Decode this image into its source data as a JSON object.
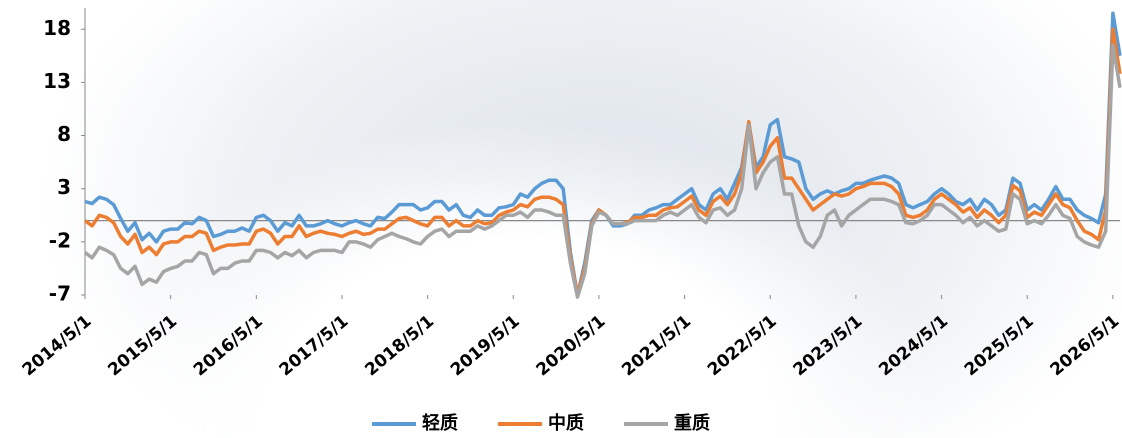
{
  "chart_data": {
    "type": "line",
    "x": [
      "2014/5/1",
      "2014/6/1",
      "2014/7/1",
      "2014/8/1",
      "2014/9/1",
      "2014/10/1",
      "2014/11/1",
      "2014/12/1",
      "2015/1/1",
      "2015/2/1",
      "2015/3/1",
      "2015/4/1",
      "2015/5/1",
      "2015/6/1",
      "2015/7/1",
      "2015/8/1",
      "2015/9/1",
      "2015/10/1",
      "2015/11/1",
      "2015/12/1",
      "2016/1/1",
      "2016/2/1",
      "2016/3/1",
      "2016/4/1",
      "2016/5/1",
      "2016/6/1",
      "2016/7/1",
      "2016/8/1",
      "2016/9/1",
      "2016/10/1",
      "2016/11/1",
      "2016/12/1",
      "2017/1/1",
      "2017/2/1",
      "2017/3/1",
      "2017/4/1",
      "2017/5/1",
      "2017/6/1",
      "2017/7/1",
      "2017/8/1",
      "2017/9/1",
      "2017/10/1",
      "2017/11/1",
      "2017/12/1",
      "2018/1/1",
      "2018/2/1",
      "2018/3/1",
      "2018/4/1",
      "2018/5/1",
      "2018/6/1",
      "2018/7/1",
      "2018/8/1",
      "2018/9/1",
      "2018/10/1",
      "2018/11/1",
      "2018/12/1",
      "2019/1/1",
      "2019/2/1",
      "2019/3/1",
      "2019/4/1",
      "2019/5/1",
      "2019/6/1",
      "2019/7/1",
      "2019/8/1",
      "2019/9/1",
      "2019/10/1",
      "2019/11/1",
      "2019/12/1",
      "2020/1/1",
      "2020/2/1",
      "2020/3/1",
      "2020/4/1",
      "2020/5/1",
      "2020/6/1",
      "2020/7/1",
      "2020/8/1",
      "2020/9/1",
      "2020/10/1",
      "2020/11/1",
      "2020/12/1",
      "2021/1/1",
      "2021/2/1",
      "2021/3/1",
      "2021/4/1",
      "2021/5/1",
      "2021/6/1",
      "2021/7/1",
      "2021/8/1",
      "2021/9/1",
      "2021/10/1",
      "2021/11/1",
      "2021/12/1",
      "2022/1/1",
      "2022/2/1",
      "2022/3/1",
      "2022/4/1",
      "2022/5/1",
      "2022/6/1",
      "2022/7/1",
      "2022/8/1",
      "2022/9/1",
      "2022/10/1",
      "2022/11/1",
      "2022/12/1",
      "2023/1/1",
      "2023/2/1",
      "2023/3/1",
      "2023/4/1",
      "2023/5/1",
      "2023/6/1",
      "2023/7/1",
      "2023/8/1",
      "2023/9/1",
      "2023/10/1",
      "2023/11/1",
      "2023/12/1",
      "2024/1/1",
      "2024/2/1",
      "2024/3/1",
      "2024/4/1",
      "2024/5/1",
      "2024/6/1",
      "2024/7/1",
      "2024/8/1",
      "2024/9/1",
      "2024/10/1",
      "2024/11/1",
      "2024/12/1",
      "2025/1/1",
      "2025/2/1",
      "2025/3/1",
      "2025/4/1",
      "2025/5/1",
      "2025/6/1",
      "2025/7/1",
      "2025/8/1",
      "2025/9/1",
      "2025/10/1",
      "2025/11/1",
      "2025/12/1",
      "2026/1/1",
      "2026/2/1",
      "2026/3/1",
      "2026/4/1",
      "2026/5/1",
      "2026/6/1"
    ],
    "series": [
      {
        "name": "轻质",
        "color": "#5b9bd5",
        "values": [
          1.8,
          1.6,
          2.2,
          2.0,
          1.5,
          0.2,
          -1.0,
          -0.2,
          -1.8,
          -1.2,
          -2.0,
          -1.0,
          -0.8,
          -0.8,
          -0.2,
          -0.3,
          0.3,
          0.0,
          -1.5,
          -1.3,
          -1.0,
          -1.0,
          -0.7,
          -1.0,
          0.3,
          0.5,
          0.0,
          -1.0,
          -0.2,
          -0.5,
          0.5,
          -0.5,
          -0.5,
          -0.3,
          0.0,
          -0.3,
          -0.5,
          -0.2,
          0.0,
          -0.3,
          -0.5,
          0.3,
          0.2,
          0.8,
          1.5,
          1.5,
          1.5,
          1.0,
          1.2,
          1.8,
          1.8,
          1.0,
          1.5,
          0.5,
          0.3,
          1.0,
          0.5,
          0.5,
          1.2,
          1.3,
          1.5,
          2.5,
          2.2,
          3.0,
          3.5,
          3.8,
          3.8,
          3.0,
          -3.0,
          -7.0,
          -4.0,
          0.0,
          1.0,
          0.5,
          -0.5,
          -0.5,
          -0.3,
          0.5,
          0.5,
          1.0,
          1.2,
          1.5,
          1.5,
          2.0,
          2.5,
          3.0,
          1.5,
          1.0,
          2.5,
          3.0,
          2.0,
          3.5,
          5.0,
          9.2,
          5.0,
          6.0,
          9.0,
          9.5,
          6.0,
          5.8,
          5.5,
          3.0,
          2.0,
          2.5,
          2.8,
          2.5,
          2.8,
          3.0,
          3.5,
          3.5,
          3.8,
          4.0,
          4.2,
          4.0,
          3.5,
          1.5,
          1.2,
          1.5,
          1.8,
          2.5,
          3.0,
          2.5,
          1.8,
          1.5,
          2.0,
          1.0,
          2.0,
          1.5,
          0.5,
          1.0,
          4.0,
          3.5,
          1.0,
          1.5,
          1.0,
          2.0,
          3.2,
          2.0,
          2.0,
          1.0,
          0.5,
          0.2,
          -0.2,
          2.5,
          19.5,
          15.5
        ]
      },
      {
        "name": "中质",
        "color": "#ed7d31",
        "values": [
          0.0,
          -0.5,
          0.5,
          0.3,
          -0.2,
          -1.5,
          -2.2,
          -1.3,
          -3.0,
          -2.5,
          -3.2,
          -2.2,
          -2.0,
          -2.0,
          -1.5,
          -1.5,
          -1.0,
          -1.2,
          -2.8,
          -2.5,
          -2.3,
          -2.3,
          -2.2,
          -2.2,
          -1.0,
          -0.8,
          -1.2,
          -2.2,
          -1.5,
          -1.5,
          -0.5,
          -1.5,
          -1.2,
          -1.0,
          -1.2,
          -1.3,
          -1.5,
          -1.2,
          -1.0,
          -1.3,
          -1.2,
          -0.8,
          -0.8,
          -0.3,
          0.2,
          0.3,
          0.0,
          -0.3,
          -0.5,
          0.3,
          0.3,
          -0.5,
          0.0,
          -0.5,
          -0.5,
          0.0,
          -0.3,
          -0.2,
          0.5,
          0.8,
          1.0,
          1.5,
          1.3,
          2.0,
          2.2,
          2.2,
          2.0,
          1.5,
          -3.5,
          -7.0,
          -4.5,
          -0.3,
          1.0,
          0.5,
          -0.3,
          -0.3,
          -0.2,
          0.3,
          0.3,
          0.5,
          0.5,
          1.0,
          1.2,
          1.3,
          1.8,
          2.3,
          1.0,
          0.5,
          1.8,
          2.3,
          1.5,
          2.5,
          4.5,
          9.3,
          4.5,
          5.5,
          7.0,
          7.8,
          4.0,
          4.0,
          3.0,
          2.0,
          1.0,
          1.5,
          2.0,
          2.5,
          2.3,
          2.5,
          3.0,
          3.2,
          3.5,
          3.5,
          3.5,
          3.2,
          2.5,
          0.5,
          0.3,
          0.5,
          1.0,
          2.0,
          2.5,
          2.0,
          1.5,
          0.8,
          1.2,
          0.3,
          1.0,
          0.5,
          -0.2,
          0.5,
          3.3,
          2.8,
          0.3,
          0.8,
          0.5,
          1.5,
          2.5,
          1.5,
          1.2,
          0.0,
          -1.0,
          -1.3,
          -1.8,
          1.0,
          18.0,
          13.8
        ]
      },
      {
        "name": "重质",
        "color": "#a5a5a5",
        "values": [
          -3.0,
          -3.5,
          -2.5,
          -2.8,
          -3.2,
          -4.5,
          -5.0,
          -4.3,
          -6.0,
          -5.5,
          -5.8,
          -4.8,
          -4.5,
          -4.3,
          -3.8,
          -3.8,
          -3.0,
          -3.2,
          -5.0,
          -4.5,
          -4.5,
          -4.0,
          -3.8,
          -3.8,
          -2.8,
          -2.8,
          -3.0,
          -3.5,
          -3.0,
          -3.3,
          -2.8,
          -3.5,
          -3.0,
          -2.8,
          -2.8,
          -2.8,
          -3.0,
          -2.0,
          -2.0,
          -2.2,
          -2.5,
          -1.8,
          -1.5,
          -1.2,
          -1.5,
          -1.7,
          -2.0,
          -2.2,
          -1.5,
          -1.0,
          -0.8,
          -1.5,
          -1.0,
          -1.0,
          -1.0,
          -0.5,
          -0.8,
          -0.5,
          0.0,
          0.5,
          0.5,
          0.8,
          0.3,
          1.0,
          1.0,
          0.8,
          0.5,
          0.5,
          -4.0,
          -7.2,
          -5.0,
          -0.5,
          0.8,
          0.5,
          -0.3,
          -0.3,
          -0.3,
          0.0,
          0.0,
          0.0,
          0.0,
          0.5,
          0.8,
          0.5,
          1.0,
          1.5,
          0.3,
          -0.2,
          1.0,
          1.2,
          0.5,
          1.0,
          3.0,
          9.0,
          3.0,
          4.5,
          5.5,
          6.0,
          2.5,
          2.5,
          -0.5,
          -2.0,
          -2.5,
          -1.5,
          0.5,
          1.0,
          -0.5,
          0.5,
          1.0,
          1.5,
          2.0,
          2.0,
          2.0,
          1.8,
          1.5,
          -0.2,
          -0.3,
          0.0,
          0.5,
          1.5,
          1.5,
          1.0,
          0.5,
          -0.2,
          0.3,
          -0.5,
          0.0,
          -0.5,
          -1.0,
          -0.8,
          2.5,
          2.0,
          -0.3,
          0.0,
          -0.3,
          0.5,
          1.5,
          0.5,
          0.2,
          -1.5,
          -2.0,
          -2.3,
          -2.5,
          -1.0,
          16.5,
          12.5
        ]
      }
    ],
    "xlim": [
      "2014/5/1",
      "2026/6/1"
    ],
    "xticks": [
      "2014/5/1",
      "2015/5/1",
      "2016/5/1",
      "2017/5/1",
      "2018/5/1",
      "2019/5/1",
      "2020/5/1",
      "2021/5/1",
      "2022/5/1",
      "2023/5/1",
      "2024/5/1",
      "2025/5/1",
      "2026/5/1"
    ],
    "ylim": [
      -7,
      20
    ],
    "yticks": [
      -7,
      -2,
      3,
      8,
      13,
      18
    ],
    "legend": "bottom"
  }
}
